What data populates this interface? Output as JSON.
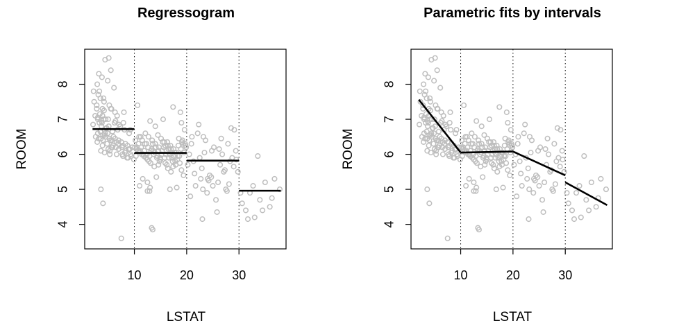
{
  "colors": {
    "points": "#bebebe",
    "fit_line": "#000000",
    "frame": "#000000",
    "breaks": "#000000"
  },
  "chart_data": [
    {
      "type": "scatter",
      "title": "Regressogram",
      "xlabel": "LSTAT",
      "ylabel": "ROOM",
      "xlim": [
        0.5,
        39
      ],
      "ylim": [
        3.3,
        9.0
      ],
      "xticks": [
        10,
        20,
        30
      ],
      "yticks": [
        4,
        5,
        6,
        7,
        8
      ],
      "breakpoints": [
        10,
        20,
        30
      ],
      "fit": {
        "kind": "piecewise-constant",
        "segments": [
          {
            "x": [
              2.0,
              10.0
            ],
            "y": [
              6.72,
              6.72
            ]
          },
          {
            "x": [
              10.0,
              20.0
            ],
            "y": [
              6.04,
              6.04
            ]
          },
          {
            "x": [
              20.0,
              30.0
            ],
            "y": [
              5.82,
              5.82
            ]
          },
          {
            "x": [
              30.0,
              38.0
            ],
            "y": [
              4.96,
              4.96
            ]
          }
        ]
      }
    },
    {
      "type": "scatter",
      "title": "Parametric fits by intervals",
      "xlabel": "LSTAT",
      "ylabel": "ROOM",
      "xlim": [
        0.5,
        39
      ],
      "ylim": [
        3.3,
        9.0
      ],
      "xticks": [
        10,
        20,
        30
      ],
      "yticks": [
        4,
        5,
        6,
        7,
        8
      ],
      "breakpoints": [
        10,
        20,
        30
      ],
      "fit": {
        "kind": "piecewise-linear",
        "segments": [
          {
            "x": [
              2.0,
              10.0
            ],
            "y": [
              7.56,
              6.05
            ]
          },
          {
            "x": [
              10.0,
              20.0
            ],
            "y": [
              6.05,
              6.08
            ]
          },
          {
            "x": [
              20.0,
              30.0
            ],
            "y": [
              6.08,
              5.4
            ]
          },
          {
            "x": [
              30.0,
              38.0
            ],
            "y": [
              5.2,
              4.55
            ]
          }
        ]
      }
    }
  ],
  "points": {
    "x": [
      4.4,
      5.1,
      5.5,
      3.2,
      3.8,
      4.9,
      6.1,
      2.9,
      2.2,
      3.1,
      3.5,
      4.2,
      2.8,
      3.9,
      6.3,
      2.5,
      4.1,
      3.3,
      5.2,
      8.0,
      3.0,
      3.7,
      2.1,
      4.6,
      5.8,
      4.3,
      3.6,
      2.9,
      3.9,
      5.0,
      2.3,
      2.8,
      3.4,
      4.5,
      3.8,
      5.1,
      6.8,
      3.0,
      2.6,
      3.2,
      4.0,
      4.8,
      5.6,
      3.6,
      4.3,
      5.3,
      6.4,
      7.1,
      4.7,
      3.5,
      4.0,
      5.2,
      6.6,
      7.8,
      8.9,
      5.5,
      4.2,
      3.9,
      5.0,
      6.2,
      7.3,
      8.1,
      9.0,
      4.5,
      5.7,
      6.9,
      7.6,
      8.4,
      9.3,
      4.9,
      6.0,
      7.0,
      8.3,
      9.6,
      5.3,
      6.6,
      7.8,
      8.8,
      9.9,
      5.9,
      7.0,
      8.2,
      9.4,
      6.3,
      7.5,
      8.7,
      9.1,
      3.0,
      3.7,
      4.4,
      5.4,
      6.5,
      7.7,
      8.6,
      3.3,
      4.1,
      5.6,
      6.7,
      7.9,
      9.2,
      10.2,
      10.8,
      11.3,
      11.9,
      12.4,
      12.9,
      13.5,
      14.1,
      14.6,
      15.2,
      15.8,
      16.3,
      16.9,
      17.5,
      18.0,
      18.6,
      19.2,
      19.7,
      10.5,
      11.1,
      11.7,
      12.2,
      12.8,
      13.3,
      13.9,
      14.4,
      15.0,
      15.6,
      16.1,
      16.7,
      17.2,
      17.8,
      18.4,
      18.9,
      19.5,
      10.3,
      10.9,
      11.5,
      12.0,
      12.6,
      13.2,
      13.7,
      14.3,
      14.8,
      15.4,
      15.9,
      16.5,
      17.1,
      17.6,
      18.2,
      18.7,
      19.3,
      19.9,
      10.7,
      11.4,
      12.1,
      12.7,
      13.4,
      14.0,
      14.7,
      15.3,
      16.0,
      16.6,
      17.3,
      17.9,
      18.5,
      19.1,
      19.8,
      10.4,
      11.0,
      11.8,
      12.5,
      13.1,
      13.8,
      14.5,
      15.1,
      15.7,
      16.4,
      17.0,
      17.7,
      18.3,
      19.0,
      19.6,
      11.2,
      12.3,
      13.6,
      14.9,
      16.2,
      17.4,
      18.8,
      10.6,
      13.0,
      15.5,
      17.0,
      19.4,
      11.6,
      14.2,
      16.8,
      18.1,
      12.9,
      14.6,
      16.4,
      13.3,
      12.5,
      11.0,
      15.9,
      17.4,
      19.0,
      14.0,
      10.1,
      20.5,
      21.3,
      22.1,
      22.9,
      23.6,
      24.4,
      25.2,
      26.0,
      26.8,
      27.5,
      28.3,
      29.1,
      29.8,
      20.9,
      21.7,
      22.5,
      23.2,
      24.0,
      24.8,
      25.6,
      26.4,
      27.1,
      27.9,
      28.7,
      29.4,
      20.2,
      21.0,
      22.7,
      23.9,
      25.0,
      26.2,
      27.3,
      28.5,
      29.5,
      21.5,
      23.4,
      24.7,
      26.6,
      27.7,
      29.0,
      22.3,
      24.2,
      25.8,
      28.1,
      23.1,
      20.7,
      30.6,
      31.3,
      32.1,
      33.0,
      34.0,
      35.0,
      35.9,
      36.8,
      37.8,
      31.7,
      32.7,
      34.5,
      30.3,
      36.3,
      33.6,
      3.6,
      7.5,
      13.5,
      23.0,
      5.8,
      12.5,
      13.0,
      4.0
    ],
    "y": [
      8.7,
      8.75,
      8.4,
      8.3,
      8.2,
      8.1,
      7.9,
      8.0,
      7.8,
      7.7,
      7.6,
      7.5,
      7.4,
      7.3,
      7.2,
      7.1,
      7.0,
      6.9,
      7.4,
      7.2,
      7.05,
      6.95,
      6.85,
      6.75,
      6.65,
      6.55,
      6.45,
      6.35,
      6.25,
      6.15,
      7.5,
      7.3,
      7.15,
      7.0,
      6.9,
      6.8,
      6.7,
      6.6,
      6.5,
      6.45,
      6.4,
      6.3,
      6.2,
      6.1,
      6.05,
      6.0,
      6.95,
      6.85,
      6.75,
      6.65,
      6.55,
      6.45,
      6.35,
      6.25,
      6.15,
      7.3,
      7.25,
      7.1,
      7.0,
      6.9,
      6.8,
      6.7,
      6.6,
      6.5,
      6.4,
      6.3,
      6.2,
      6.1,
      6.0,
      6.6,
      6.5,
      6.4,
      6.3,
      6.2,
      6.1,
      6.0,
      5.95,
      5.9,
      5.85,
      6.25,
      6.15,
      6.05,
      5.95,
      6.45,
      6.35,
      6.25,
      6.15,
      7.0,
      6.8,
      6.6,
      6.4,
      6.2,
      6.0,
      5.9,
      7.8,
      7.6,
      7.3,
      7.1,
      6.9,
      6.7,
      6.4,
      6.3,
      6.2,
      6.1,
      6.0,
      5.95,
      6.3,
      6.2,
      6.1,
      6.0,
      5.9,
      6.35,
      6.25,
      6.15,
      6.05,
      5.95,
      6.4,
      6.3,
      6.2,
      6.1,
      6.0,
      5.9,
      5.8,
      6.15,
      6.05,
      5.95,
      5.85,
      6.2,
      6.1,
      6.0,
      5.9,
      5.8,
      6.25,
      6.15,
      6.05,
      5.95,
      6.5,
      6.4,
      6.3,
      6.2,
      6.1,
      6.0,
      5.9,
      5.8,
      6.35,
      6.25,
      6.15,
      6.05,
      5.95,
      5.85,
      5.75,
      6.3,
      6.2,
      6.1,
      6.0,
      6.6,
      6.5,
      6.4,
      6.3,
      6.2,
      6.1,
      6.0,
      5.9,
      5.8,
      5.7,
      6.45,
      6.35,
      6.25,
      6.15,
      6.05,
      5.95,
      5.85,
      5.75,
      5.65,
      6.55,
      6.45,
      6.35,
      6.25,
      6.15,
      6.05,
      5.95,
      6.9,
      6.7,
      6.5,
      6.3,
      6.1,
      5.9,
      5.7,
      7.35,
      7.2,
      7.4,
      6.95,
      7.0,
      5.5,
      5.4,
      5.3,
      5.35,
      5.0,
      5.05,
      4.95,
      5.7,
      5.6,
      3.9,
      5.2,
      5.1,
      5.75,
      5.65,
      5.55,
      6.8,
      6.2,
      6.0,
      5.8,
      6.6,
      5.6,
      6.4,
      5.4,
      6.2,
      5.2,
      6.0,
      5.0,
      5.8,
      6.7,
      5.5,
      6.3,
      5.1,
      5.9,
      6.5,
      5.3,
      6.1,
      4.7,
      5.7,
      5.5,
      6.3,
      5.9,
      6.1,
      5.7,
      6.5,
      5.3,
      4.9,
      5.1,
      6.15,
      5.55,
      6.75,
      5.85,
      5.45,
      6.05,
      5.35,
      6.45,
      4.95,
      5.65,
      6.85,
      5.25,
      4.35,
      5.15,
      5.0,
      4.8,
      4.6,
      4.4,
      4.9,
      4.2,
      4.7,
      5.2,
      4.5,
      5.3,
      5.0,
      4.15,
      5.1,
      4.4,
      4.9,
      4.75,
      5.95,
      5.0,
      3.6,
      3.85,
      4.15,
      6.2,
      4.95,
      5.05,
      4.6
    ]
  }
}
